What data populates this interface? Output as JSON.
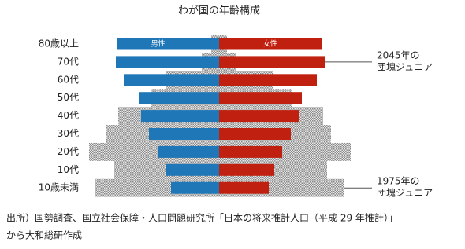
{
  "chart_data": {
    "type": "pyramid",
    "title": "わが国の年齢構成",
    "categories": [
      "80歳以上",
      "70代",
      "60代",
      "50代",
      "40代",
      "30代",
      "20代",
      "10代",
      "10歳未満"
    ],
    "xlim": [
      0,
      170
    ],
    "series": [
      {
        "name": "男性",
        "color": "#1f77b8",
        "side": "left",
        "values": [
          129,
          131,
          121,
          102,
          99,
          89,
          78,
          67,
          61
        ]
      },
      {
        "name": "女性",
        "color": "#c0200f",
        "side": "right",
        "values": [
          130,
          134,
          124,
          105,
          101,
          91,
          80,
          70,
          63
        ]
      },
      {
        "color": "#aaaaaa",
        "side": "left",
        "pattern": "dots",
        "values": [
          10,
          22,
          68,
          86,
          128,
          143,
          165,
          133,
          158
        ]
      },
      {
        "color": "#aaaaaa",
        "side": "right",
        "pattern": "dots",
        "values": [
          10,
          22,
          68,
          92,
          132,
          142,
          167,
          137,
          159
        ]
      }
    ],
    "annotations": [
      [
        "2045年の",
        "団塊ジュニア"
      ],
      [
        "1975年の",
        "団塊ジュニア"
      ]
    ],
    "source": [
      "出所）国勢調査、国立社会保障・人口問題研究所「日本の将来推計人口（平成 29 年推計）」",
      "から大和総研作成"
    ]
  }
}
